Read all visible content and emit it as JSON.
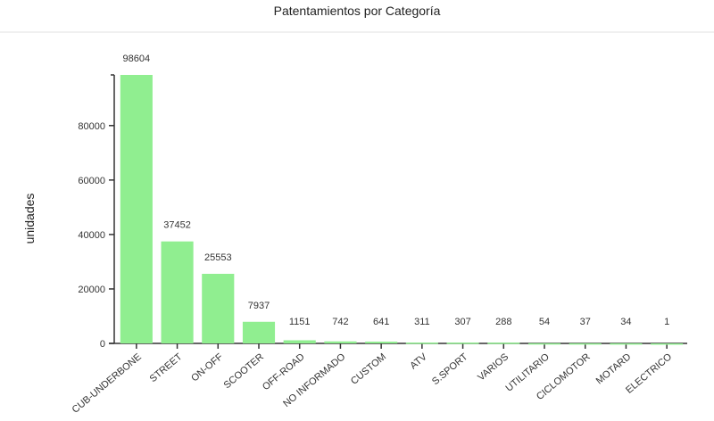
{
  "chart_data": {
    "type": "bar",
    "title": "Patentamientos por Categoría",
    "xlabel": "",
    "ylabel": "unidades",
    "ylim": [
      0,
      98604
    ],
    "yticks": [
      0,
      20000,
      40000,
      60000,
      80000
    ],
    "grid": false,
    "bar_color": "#90ee90",
    "categories": [
      "CUB-UNDERBONE",
      "STREET",
      "ON-OFF",
      "SCOOTER",
      "OFF-ROAD",
      "NO INFORMADO",
      "CUSTOM",
      "ATV",
      "S.SPORT",
      "VARIOS",
      "UTILITARIO",
      "CICLOMOTOR",
      "MOTARD",
      "ELECTRICO"
    ],
    "values": [
      98604,
      37452,
      25553,
      7937,
      1151,
      742,
      641,
      311,
      307,
      288,
      54,
      37,
      34,
      1
    ]
  }
}
